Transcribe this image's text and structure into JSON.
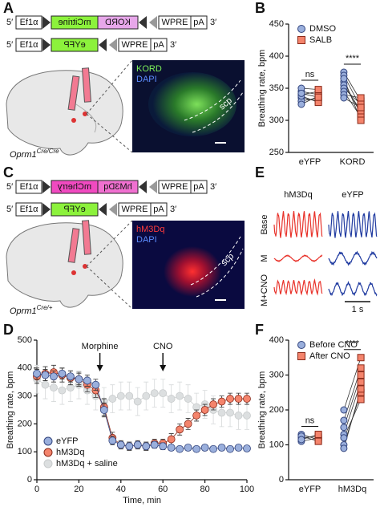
{
  "panel_labels": [
    "A",
    "B",
    "C",
    "D",
    "E",
    "F"
  ],
  "panel_a": {
    "construct_1": [
      "5′",
      "Ef1α",
      "mCitrine",
      "KORD",
      "WPRE",
      "pA",
      "3′"
    ],
    "construct_2": [
      "5′",
      "Ef1α",
      "eYFP",
      "WPRE",
      "pA",
      "3′"
    ],
    "image_labels": [
      "KORD",
      "DAPI",
      "scp"
    ],
    "genotype": {
      "name": "Oprm1",
      "superscript": "Cre/Cre"
    }
  },
  "panel_c": {
    "construct_1": [
      "5′",
      "Ef1α",
      "mCherry",
      "hM3Dq",
      "WPRE",
      "pA",
      "3′"
    ],
    "construct_2": [
      "5′",
      "Ef1α",
      "eYFP",
      "WPRE",
      "pA",
      "3′"
    ],
    "image_labels": [
      "hM3Dq",
      "DAPI",
      "scp"
    ],
    "genotype": {
      "name": "Oprm1",
      "superscript": "Cre/+"
    }
  },
  "panel_e": {
    "groups": [
      "hM3Dq",
      "eYFP"
    ],
    "conditions": [
      "Base",
      "M",
      "M+CNO"
    ],
    "scale_bar": "1 s"
  },
  "chart_data": [
    {
      "type": "paired-dot",
      "y_label": "Breathing rate, bpm",
      "categories": [
        "eYFP",
        "KORD"
      ],
      "significance": [
        "ns",
        "****"
      ],
      "ylim": [
        250,
        450
      ],
      "yticks": [
        250,
        300,
        350,
        400,
        450
      ],
      "legend": "top-right",
      "series": [
        {
          "name": "DMSO",
          "color": "#9aafdc",
          "marker": "circle",
          "values": [
            [
              345,
              340,
              335,
              330,
              350,
              338,
              325,
              342
            ],
            [
              375,
              370,
              360,
              355,
              350,
              345,
              340,
              365,
              335
            ]
          ]
        },
        {
          "name": "SALB",
          "color": "#f4846c",
          "marker": "square",
          "values": [
            [
              340,
              345,
              330,
              335,
              348,
              328,
              338,
              336
            ],
            [
              330,
              320,
              310,
              315,
              325,
              305,
              335,
              300,
              320
            ]
          ]
        }
      ]
    },
    {
      "type": "line",
      "x_label": "Time, min",
      "y_label": "Breathing rate, bpm",
      "x": [
        0,
        4,
        8,
        12,
        16,
        20,
        24,
        28,
        32,
        36,
        40,
        44,
        48,
        52,
        56,
        60,
        64,
        68,
        72,
        76,
        80,
        84,
        88,
        92,
        96,
        100
      ],
      "xlim": [
        0,
        100
      ],
      "xticks": [
        0,
        20,
        40,
        60,
        80,
        100
      ],
      "ylim": [
        0,
        500
      ],
      "yticks": [
        0,
        100,
        200,
        300,
        400,
        500
      ],
      "legend": "bottom-left",
      "annotations": [
        {
          "text": "Morphine",
          "x": 30
        },
        {
          "text": "CNO",
          "x": 60
        }
      ],
      "series": [
        {
          "name": "eYFP",
          "color": "#9aafdc",
          "values": [
            380,
            375,
            370,
            380,
            370,
            360,
            355,
            340,
            250,
            140,
            125,
            120,
            125,
            120,
            125,
            120,
            115,
            110,
            115,
            110,
            115,
            110,
            115,
            110,
            115,
            112
          ],
          "errors": [
            20,
            20,
            20,
            20,
            20,
            20,
            20,
            20,
            25,
            15,
            12,
            12,
            12,
            12,
            12,
            12,
            10,
            10,
            10,
            10,
            10,
            10,
            10,
            10,
            10,
            10
          ]
        },
        {
          "name": "hM3Dq",
          "color": "#f4846c",
          "values": [
            370,
            380,
            385,
            375,
            365,
            360,
            340,
            320,
            260,
            150,
            125,
            120,
            125,
            120,
            130,
            130,
            145,
            180,
            200,
            230,
            250,
            270,
            280,
            290,
            290,
            290
          ],
          "errors": [
            25,
            25,
            25,
            25,
            25,
            25,
            25,
            25,
            30,
            20,
            15,
            15,
            15,
            15,
            15,
            15,
            20,
            20,
            20,
            20,
            20,
            20,
            20,
            20,
            20,
            20
          ]
        },
        {
          "name": "hM3Dq + saline",
          "color": "#dcdfe0",
          "values": [
            360,
            340,
            330,
            320,
            330,
            340,
            320,
            300,
            280,
            290,
            300,
            300,
            280,
            300,
            310,
            310,
            290,
            300,
            290,
            260,
            270,
            250,
            240,
            240,
            230,
            230
          ],
          "errors": [
            50,
            50,
            50,
            50,
            50,
            50,
            50,
            50,
            50,
            50,
            50,
            50,
            50,
            50,
            50,
            50,
            50,
            50,
            50,
            50,
            50,
            50,
            50,
            50,
            50,
            50
          ]
        }
      ]
    },
    {
      "type": "paired-dot",
      "y_label": "Breathing rate, bpm",
      "categories": [
        "eYFP",
        "hM3Dq"
      ],
      "significance": [
        "ns",
        "****"
      ],
      "ylim": [
        0,
        400
      ],
      "yticks": [
        0,
        100,
        200,
        300,
        400
      ],
      "legend": "top-right",
      "series": [
        {
          "name": "Before CNO",
          "color": "#9aafdc",
          "marker": "circle",
          "values": [
            [
              120,
              130,
              110,
              125,
              115
            ],
            [
              100,
              150,
              130,
              200,
              120,
              90,
              170
            ]
          ]
        },
        {
          "name": "After CNO",
          "color": "#f4846c",
          "marker": "square",
          "values": [
            [
              125,
              115,
              120,
              110,
              130
            ],
            [
              250,
              300,
              280,
              350,
              230,
              260,
              320
            ]
          ]
        }
      ]
    }
  ]
}
